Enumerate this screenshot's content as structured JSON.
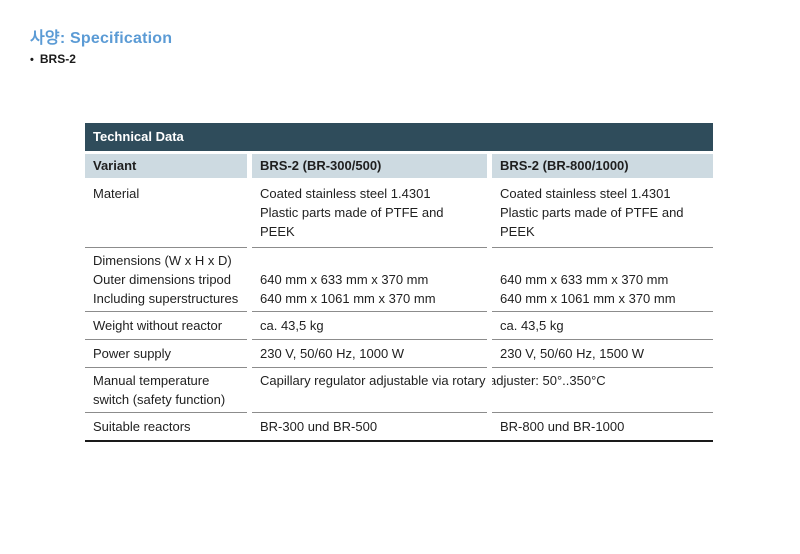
{
  "page": {
    "title": "사양: Specification",
    "bullet_marker": "•",
    "bullet": "BRS-2"
  },
  "table": {
    "header": "Technical Data",
    "columns": [
      "Variant",
      "BRS-2 (BR-300/500)",
      "BRS-2 (BR-800/1000)"
    ],
    "rows": [
      {
        "label": "Material",
        "values": [
          "Coated stainless steel 1.4301\nPlastic parts made of PTFE and\nPEEK",
          "Coated stainless steel 1.4301\nPlastic parts made of PTFE and\nPEEK"
        ]
      },
      {
        "label": "Dimensions (W x H x D)\nOuter dimensions tripod\nIncluding superstructures",
        "values": [
          "640 mm x 633 mm x 370 mm\n640 mm x 1061 mm x 370 mm",
          "640 mm x 633 mm x 370 mm\n640 mm x 1061 mm x 370 mm"
        ]
      },
      {
        "label": "Weight without reactor",
        "values": [
          "ca. 43,5 kg",
          "ca. 43,5 kg"
        ]
      },
      {
        "label": "Power supply",
        "values": [
          "230 V, 50/60 Hz, 1000 W",
          "230 V, 50/60 Hz, 1500 W"
        ]
      },
      {
        "label": "Manual temperature\nswitch (safety function)",
        "values": [
          "Capillary regulator adjustable via rotary adjuster: 50°..350°C",
          ""
        ]
      },
      {
        "label": "Suitable reactors",
        "values": [
          "BR-300 und BR-500",
          "BR-800 und BR-1000"
        ]
      }
    ],
    "colors": {
      "header_bg": "#2F4C5B",
      "header_text": "#FFFFFF",
      "subheader_bg": "#CDDAE1",
      "body_text": "#1F1F1F",
      "divider": "#8C8C8C",
      "bottom_border": "#1A1A1A",
      "title_accent": "#5B9BD5"
    }
  }
}
